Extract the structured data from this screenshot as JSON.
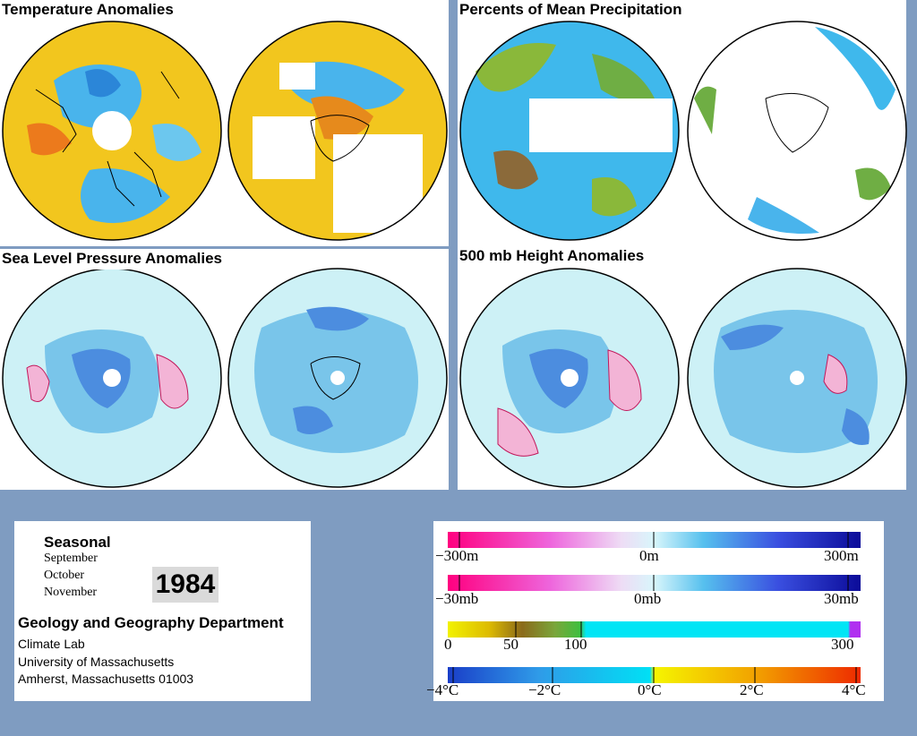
{
  "panels": {
    "temperature": {
      "title": "Temperature Anomalies"
    },
    "precipitation": {
      "title": "Percents of Mean Precipitation"
    },
    "slp": {
      "title": "Sea Level Pressure Anomalies"
    },
    "height500": {
      "title": "500 mb Height Anomalies"
    }
  },
  "info": {
    "seasonal": "Seasonal",
    "months": [
      "September",
      "October",
      "November"
    ],
    "year": "1984",
    "department": "Geology and Geography Department",
    "lines": [
      "Climate Lab",
      "University of Massachusetts",
      "Amherst, Massachusetts 01003"
    ]
  },
  "legend": {
    "height": {
      "labels": [
        "−300m",
        "0m",
        "300m"
      ]
    },
    "pressure": {
      "labels": [
        "−30mb",
        "0mb",
        "30mb"
      ]
    },
    "precip": {
      "labels": [
        "0",
        "50",
        "100",
        "300"
      ]
    },
    "temp": {
      "labels": [
        "−4°C",
        "−2°C",
        "0°C",
        "2°C",
        "4°C"
      ]
    }
  },
  "colors": {
    "background": "#7f9cc1",
    "anomaly_light": "#cdf1f6",
    "anomaly_blue": "#79c5ea",
    "anomaly_positive": "#f3b4d6",
    "temp_warm": "#f2c21c",
    "temp_cool": "#3fb8ec"
  }
}
